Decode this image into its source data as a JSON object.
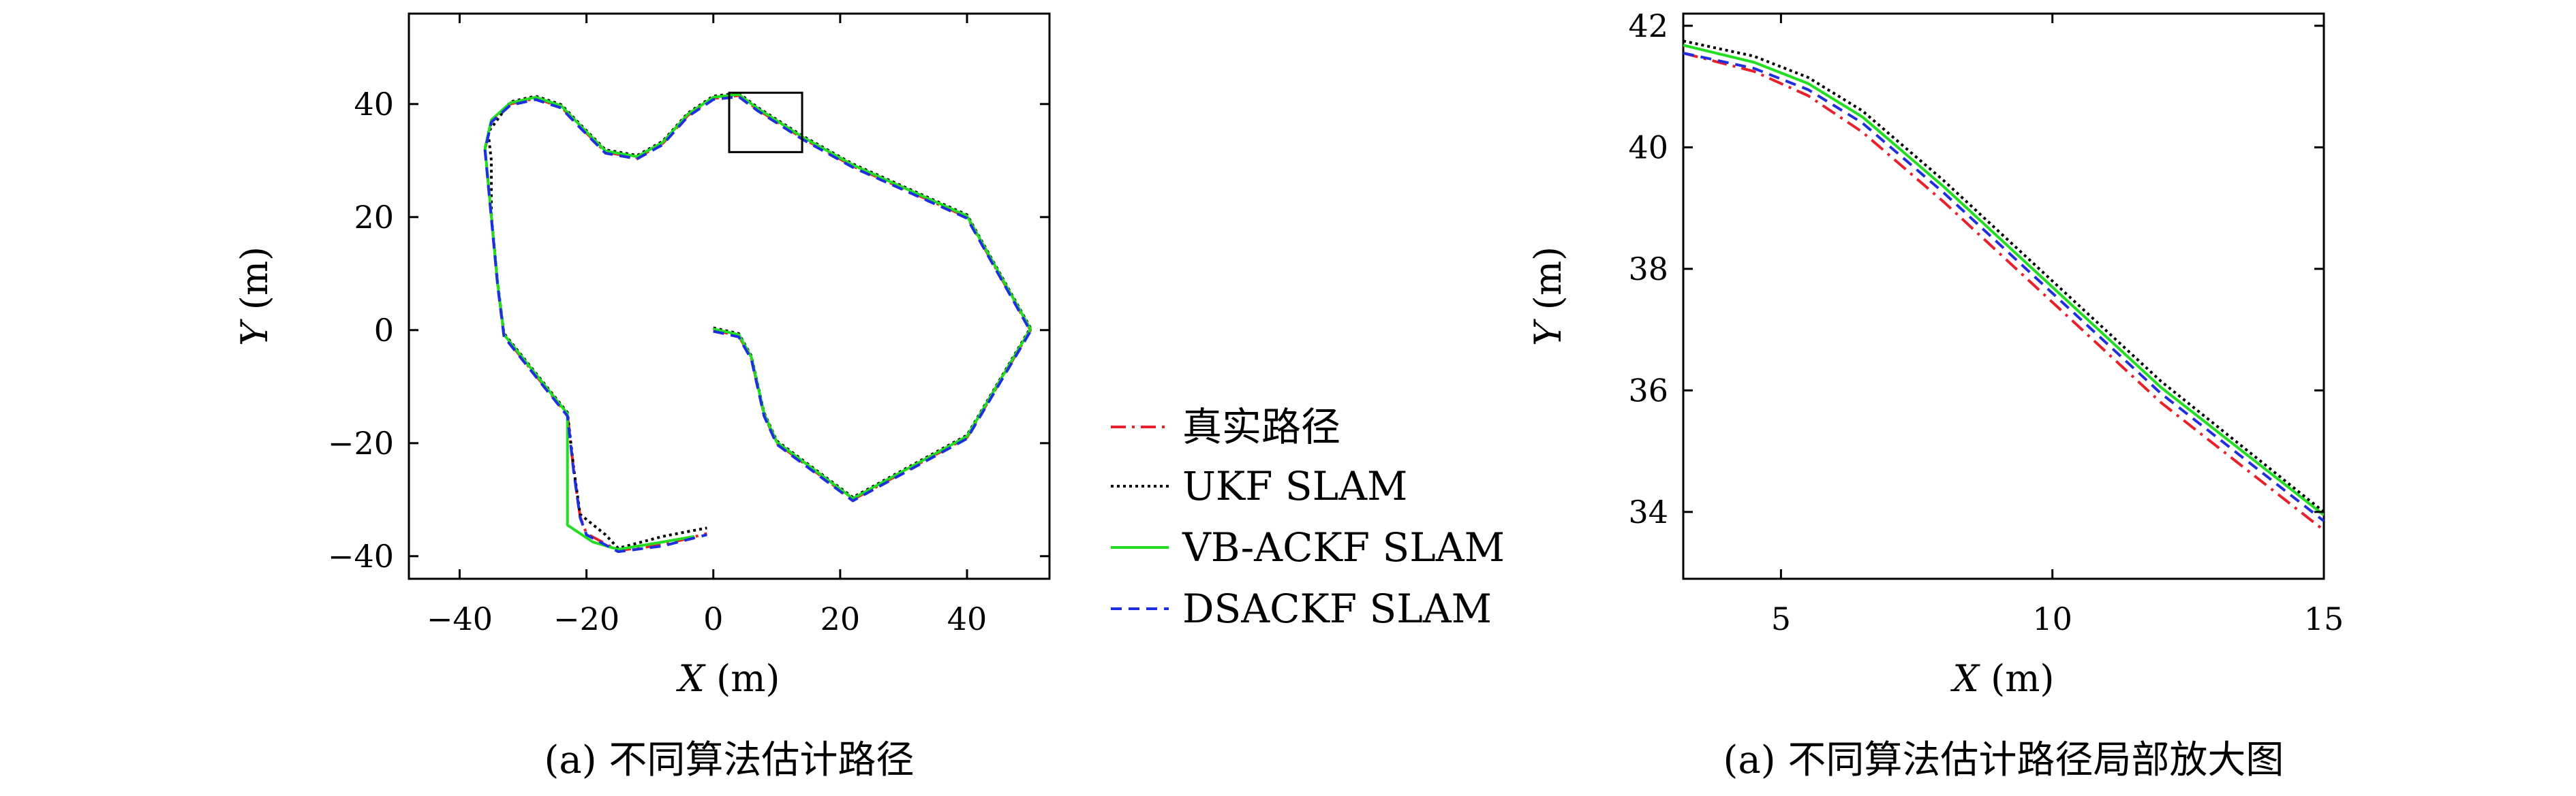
{
  "colors": {
    "true_path": "#e8202a",
    "ukf": "#000000",
    "vbackf": "#22dd22",
    "dsackf": "#1f2fe0",
    "axes": "#000000"
  },
  "legend": {
    "items": [
      {
        "key": "true",
        "label": "真实路径"
      },
      {
        "key": "ukf",
        "label": "UKF SLAM"
      },
      {
        "key": "vbackf",
        "label": "VB-ACKF SLAM"
      },
      {
        "key": "dsackf",
        "label": "DSACKF SLAM"
      }
    ]
  },
  "captions": {
    "left": "(a) 不同算法估计路径",
    "right": "(a) 不同算法估计路径局部放大图"
  },
  "chart_data": [
    {
      "type": "line",
      "xlabel_var": "X",
      "xlabel_unit": "(m)",
      "ylabel_var": "Y",
      "ylabel_unit": "(m)",
      "xlim": [
        -48,
        53
      ],
      "ylim": [
        -44,
        56
      ],
      "xticks": [
        -40,
        -20,
        0,
        20,
        40
      ],
      "yticks": [
        -40,
        -20,
        0,
        20,
        40
      ],
      "xtick_labels": [
        "−40",
        "−20",
        "0",
        "20",
        "40"
      ],
      "ytick_labels": [
        "−40",
        "−20",
        "0",
        "20",
        "40"
      ],
      "grid": false,
      "zoom_box": {
        "x": [
          2.5,
          14
        ],
        "y": [
          31.5,
          42
        ]
      },
      "true_path": [
        [
          0,
          0
        ],
        [
          4,
          -1
        ],
        [
          6,
          -5
        ],
        [
          8,
          -15
        ],
        [
          10,
          -20
        ],
        [
          22,
          -30
        ],
        [
          40,
          -19
        ],
        [
          50,
          0
        ],
        [
          40,
          20
        ],
        [
          22,
          29
        ],
        [
          14,
          34
        ],
        [
          7,
          39
        ],
        [
          4,
          41.5
        ],
        [
          0,
          41
        ],
        [
          -4,
          38
        ],
        [
          -8,
          33
        ],
        [
          -12,
          30.5
        ],
        [
          -17,
          31.5
        ],
        [
          -21,
          36
        ],
        [
          -24,
          39.5
        ],
        [
          -28,
          41
        ],
        [
          -32,
          40
        ],
        [
          -35,
          37
        ],
        [
          -36,
          32
        ],
        [
          -35,
          20
        ],
        [
          -34,
          8
        ],
        [
          -33,
          -1
        ],
        [
          -28,
          -8
        ],
        [
          -23,
          -15
        ],
        [
          -22,
          -25
        ],
        [
          -21,
          -33
        ],
        [
          -20,
          -36
        ],
        [
          -15,
          -39
        ],
        [
          -8,
          -38
        ],
        [
          -1,
          -36
        ]
      ],
      "series": [
        {
          "name": "UKF SLAM",
          "key": "ukf",
          "dy": 0.4,
          "overrides": [
            [
              -17,
              -36.2
            ],
            [
              -8,
              -36.5
            ],
            [
              -1,
              -35.0
            ],
            [
              -35,
              30
            ],
            [
              -35.5,
              35
            ]
          ]
        },
        {
          "name": "VB-ACKF SLAM",
          "key": "vbackf",
          "dy": 0.2,
          "overrides": [
            [
              -23,
              -25.5
            ],
            [
              -23,
              -34.5
            ],
            [
              -19,
              -37.5
            ],
            [
              -8,
              -37.5
            ],
            [
              -3,
              -36.5
            ]
          ]
        },
        {
          "name": "DSACKF SLAM",
          "key": "dsackf",
          "dy": -0.2,
          "overrides": []
        }
      ]
    },
    {
      "type": "line",
      "xlabel_var": "X",
      "xlabel_unit": "(m)",
      "ylabel_var": "Y",
      "ylabel_unit": "(m)",
      "xlim": [
        3.2,
        15
      ],
      "ylim": [
        32.9,
        42.2
      ],
      "xticks": [
        5,
        10,
        15
      ],
      "yticks": [
        34,
        36,
        38,
        40,
        42
      ],
      "xtick_labels": [
        "5",
        "10",
        "15"
      ],
      "ytick_labels": [
        "34",
        "36",
        "38",
        "40",
        "42"
      ],
      "grid": false,
      "series": [
        {
          "name": "真实路径",
          "key": "true",
          "points": [
            [
              3.2,
              41.55
            ],
            [
              4.5,
              41.25
            ],
            [
              5.5,
              40.85
            ],
            [
              6.5,
              40.25
            ],
            [
              8,
              39.1
            ],
            [
              10,
              37.45
            ],
            [
              12,
              35.8
            ],
            [
              15,
              33.7
            ]
          ]
        },
        {
          "name": "UKF SLAM",
          "key": "ukf",
          "points": [
            [
              3.2,
              41.75
            ],
            [
              4.5,
              41.5
            ],
            [
              5.5,
              41.15
            ],
            [
              6.5,
              40.6
            ],
            [
              8,
              39.45
            ],
            [
              10,
              37.8
            ],
            [
              12,
              36.15
            ],
            [
              15,
              34.0
            ]
          ]
        },
        {
          "name": "VB-ACKF SLAM",
          "key": "vbackf",
          "points": [
            [
              3.2,
              41.68
            ],
            [
              4.5,
              41.4
            ],
            [
              5.5,
              41.05
            ],
            [
              6.5,
              40.5
            ],
            [
              8,
              39.35
            ],
            [
              10,
              37.7
            ],
            [
              12,
              36.05
            ],
            [
              15,
              33.95
            ]
          ]
        },
        {
          "name": "DSACKF SLAM",
          "key": "dsackf",
          "points": [
            [
              3.2,
              41.55
            ],
            [
              4.5,
              41.3
            ],
            [
              5.5,
              40.95
            ],
            [
              6.5,
              40.4
            ],
            [
              8,
              39.25
            ],
            [
              10,
              37.6
            ],
            [
              12,
              35.95
            ],
            [
              15,
              33.85
            ]
          ]
        }
      ]
    }
  ]
}
